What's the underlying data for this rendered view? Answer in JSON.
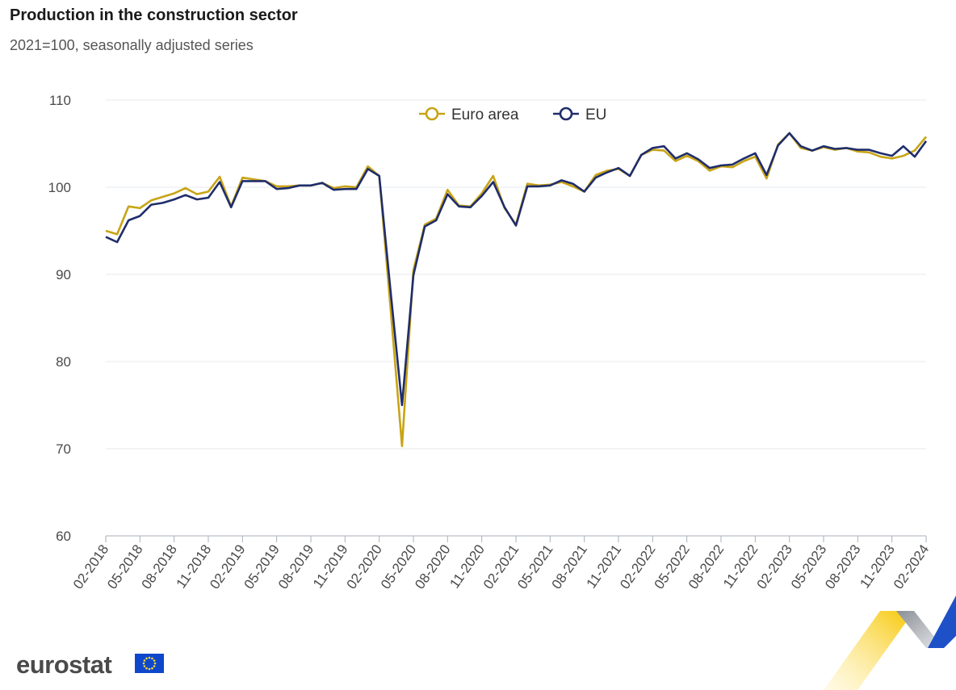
{
  "title": "Production in the construction sector",
  "subtitle": "2021=100, seasonally adjusted series",
  "logo": {
    "text": "eurostat",
    "flag_icon": "eu-flag-icon"
  },
  "colors": {
    "euro_area": "#c8a415",
    "eu": "#1f2d6b",
    "grid": "#e4e8ec",
    "axis": "#aab2bb",
    "text": "#4a4a4a"
  },
  "chart_data": {
    "type": "line",
    "title": "Production in the construction sector",
    "subtitle": "2021=100, seasonally adjusted series",
    "xlabel": "",
    "ylabel": "",
    "ylim": [
      60,
      110
    ],
    "yticks": [
      "60",
      "70",
      "80",
      "90",
      "100",
      "110"
    ],
    "x": [
      "02-2018",
      "03-2018",
      "04-2018",
      "05-2018",
      "06-2018",
      "07-2018",
      "08-2018",
      "09-2018",
      "10-2018",
      "11-2018",
      "12-2018",
      "01-2019",
      "02-2019",
      "03-2019",
      "04-2019",
      "05-2019",
      "06-2019",
      "07-2019",
      "08-2019",
      "09-2019",
      "10-2019",
      "11-2019",
      "12-2019",
      "01-2020",
      "02-2020",
      "03-2020",
      "04-2020",
      "05-2020",
      "06-2020",
      "07-2020",
      "08-2020",
      "09-2020",
      "10-2020",
      "11-2020",
      "12-2020",
      "01-2021",
      "02-2021",
      "03-2021",
      "04-2021",
      "05-2021",
      "06-2021",
      "07-2021",
      "08-2021",
      "09-2021",
      "10-2021",
      "11-2021",
      "12-2021",
      "01-2022",
      "02-2022",
      "03-2022",
      "04-2022",
      "05-2022",
      "06-2022",
      "07-2022",
      "08-2022",
      "09-2022",
      "10-2022",
      "11-2022",
      "12-2022",
      "01-2023",
      "02-2023",
      "03-2023",
      "04-2023",
      "05-2023",
      "06-2023",
      "07-2023",
      "08-2023",
      "09-2023",
      "10-2023",
      "11-2023",
      "12-2023",
      "01-2024",
      "02-2024"
    ],
    "xtick_labels": [
      "02-2018",
      "05-2018",
      "08-2018",
      "11-2018",
      "02-2019",
      "05-2019",
      "08-2019",
      "11-2019",
      "02-2020",
      "05-2020",
      "08-2020",
      "11-2020",
      "02-2021",
      "05-2021",
      "08-2021",
      "11-2021",
      "02-2022",
      "05-2022",
      "08-2022",
      "11-2022",
      "02-2023",
      "05-2023",
      "08-2023",
      "11-2023",
      "02-2024"
    ],
    "legend_position": "top-center",
    "series": [
      {
        "name": "Euro area",
        "color": "#c8a415",
        "values": [
          95.0,
          94.6,
          97.8,
          97.6,
          98.5,
          98.9,
          99.3,
          99.9,
          99.2,
          99.5,
          101.2,
          97.8,
          101.1,
          100.9,
          100.7,
          100.1,
          100.1,
          100.2,
          100.2,
          100.5,
          99.9,
          100.1,
          100.0,
          102.4,
          101.3,
          86.0,
          70.3,
          90.5,
          95.7,
          96.4,
          99.7,
          97.9,
          97.8,
          99.3,
          101.3,
          97.6,
          95.7,
          100.4,
          100.2,
          100.3,
          100.6,
          100.1,
          99.5,
          101.4,
          101.9,
          102.1,
          101.3,
          103.7,
          104.3,
          104.2,
          103.0,
          103.6,
          103.0,
          101.9,
          102.4,
          102.3,
          103.0,
          103.5,
          101.0,
          104.9,
          106.2,
          104.5,
          104.2,
          104.6,
          104.3,
          104.5,
          104.1,
          104.0,
          103.5,
          103.3,
          103.6,
          104.2,
          105.8
        ]
      },
      {
        "name": "EU",
        "color": "#1f2d6b",
        "values": [
          94.3,
          93.7,
          96.2,
          96.7,
          98.0,
          98.2,
          98.6,
          99.1,
          98.6,
          98.8,
          100.6,
          97.7,
          100.7,
          100.7,
          100.7,
          99.8,
          99.9,
          100.2,
          100.2,
          100.5,
          99.7,
          99.8,
          99.8,
          102.1,
          101.3,
          88.0,
          75.0,
          89.9,
          95.5,
          96.2,
          99.2,
          97.8,
          97.7,
          99.0,
          100.6,
          97.7,
          95.6,
          100.1,
          100.1,
          100.2,
          100.8,
          100.4,
          99.5,
          101.1,
          101.7,
          102.2,
          101.3,
          103.7,
          104.5,
          104.7,
          103.3,
          103.9,
          103.2,
          102.2,
          102.5,
          102.6,
          103.3,
          103.9,
          101.4,
          104.8,
          106.2,
          104.7,
          104.2,
          104.7,
          104.4,
          104.5,
          104.3,
          104.3,
          103.9,
          103.6,
          104.7,
          103.5,
          105.3
        ]
      }
    ]
  }
}
